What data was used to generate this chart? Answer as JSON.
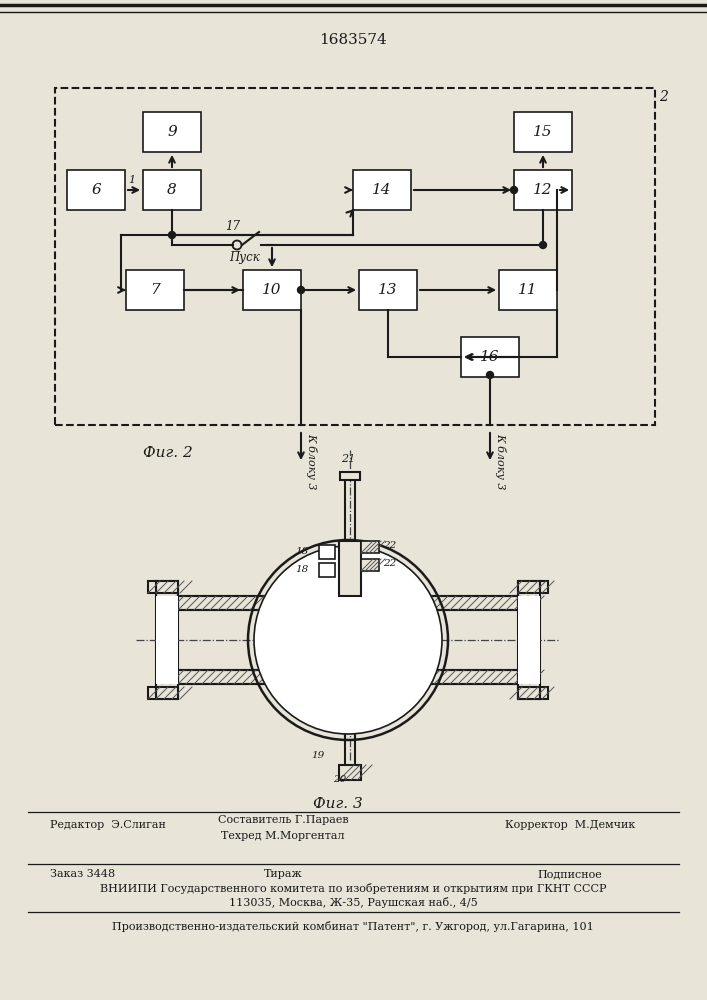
{
  "title": "1683574",
  "fig2_label": "Фиг. 2",
  "fig3_label": "Фиг. 3",
  "footer_editor": "Редактор  Э.Слиган",
  "footer_comp": "Составитель Г.Параев",
  "footer_tech": "Техред М.Моргентал",
  "footer_corr": "Корректор  М.Демчик",
  "footer_order": "Заказ 3448",
  "footer_tirazh": "Тираж",
  "footer_podp": "Подписное",
  "footer_vniip1": "ВНИИПИ Государственного комитета по изобретениям и открытиям при ГКНТ СССР",
  "footer_vniip2": "113035, Москва, Ж-35, Раушская наб., 4/5",
  "footer_patent": "Производственно-издательский комбинат \"Патент\", г. Ужгород, ул.Гагарина, 101",
  "bg_color": "#e8e4d8",
  "line_color": "#1a1a1a",
  "block_color": "#ffffff"
}
